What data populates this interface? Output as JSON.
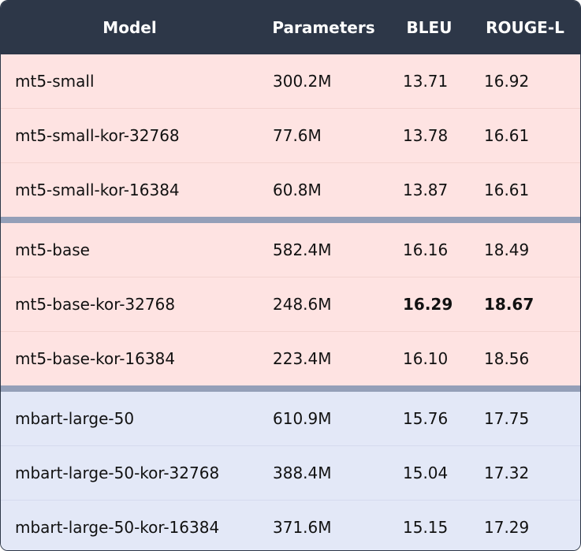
{
  "table": {
    "headers": [
      "Model",
      "Parameters",
      "BLEU",
      "ROUGE-L"
    ],
    "rows": [
      {
        "model": "mt5-small",
        "params": "300.2M",
        "bleu": "13.71",
        "rouge": "16.92",
        "group": "mt5"
      },
      {
        "model": "mt5-small-kor-32768",
        "params": "77.6M",
        "bleu": "13.78",
        "rouge": "16.61",
        "group": "mt5"
      },
      {
        "model": "mt5-small-kor-16384",
        "params": "60.8M",
        "bleu": "13.87",
        "rouge": "16.61",
        "group": "mt5"
      },
      {
        "model": "mt5-base",
        "params": "582.4M",
        "bleu": "16.16",
        "rouge": "18.49",
        "group": "mt5"
      },
      {
        "model": "mt5-base-kor-32768",
        "params": "248.6M",
        "bleu": "16.29",
        "rouge": "18.67",
        "group": "mt5",
        "best": true
      },
      {
        "model": "mt5-base-kor-16384",
        "params": "223.4M",
        "bleu": "16.10",
        "rouge": "18.56",
        "group": "mt5"
      },
      {
        "model": "mbart-large-50",
        "params": "610.9M",
        "bleu": "15.76",
        "rouge": "17.75",
        "group": "mbart"
      },
      {
        "model": "mbart-large-50-kor-32768",
        "params": "388.4M",
        "bleu": "15.04",
        "rouge": "17.32",
        "group": "mbart"
      },
      {
        "model": "mbart-large-50-kor-16384",
        "params": "371.6M",
        "bleu": "15.15",
        "rouge": "17.29",
        "group": "mbart"
      }
    ]
  },
  "colors": {
    "header_bg": "#2d3748",
    "mt5_row_bg": "#fee3e2",
    "mbart_row_bg": "#e3e8f7",
    "group_divider": "#949fb8"
  }
}
